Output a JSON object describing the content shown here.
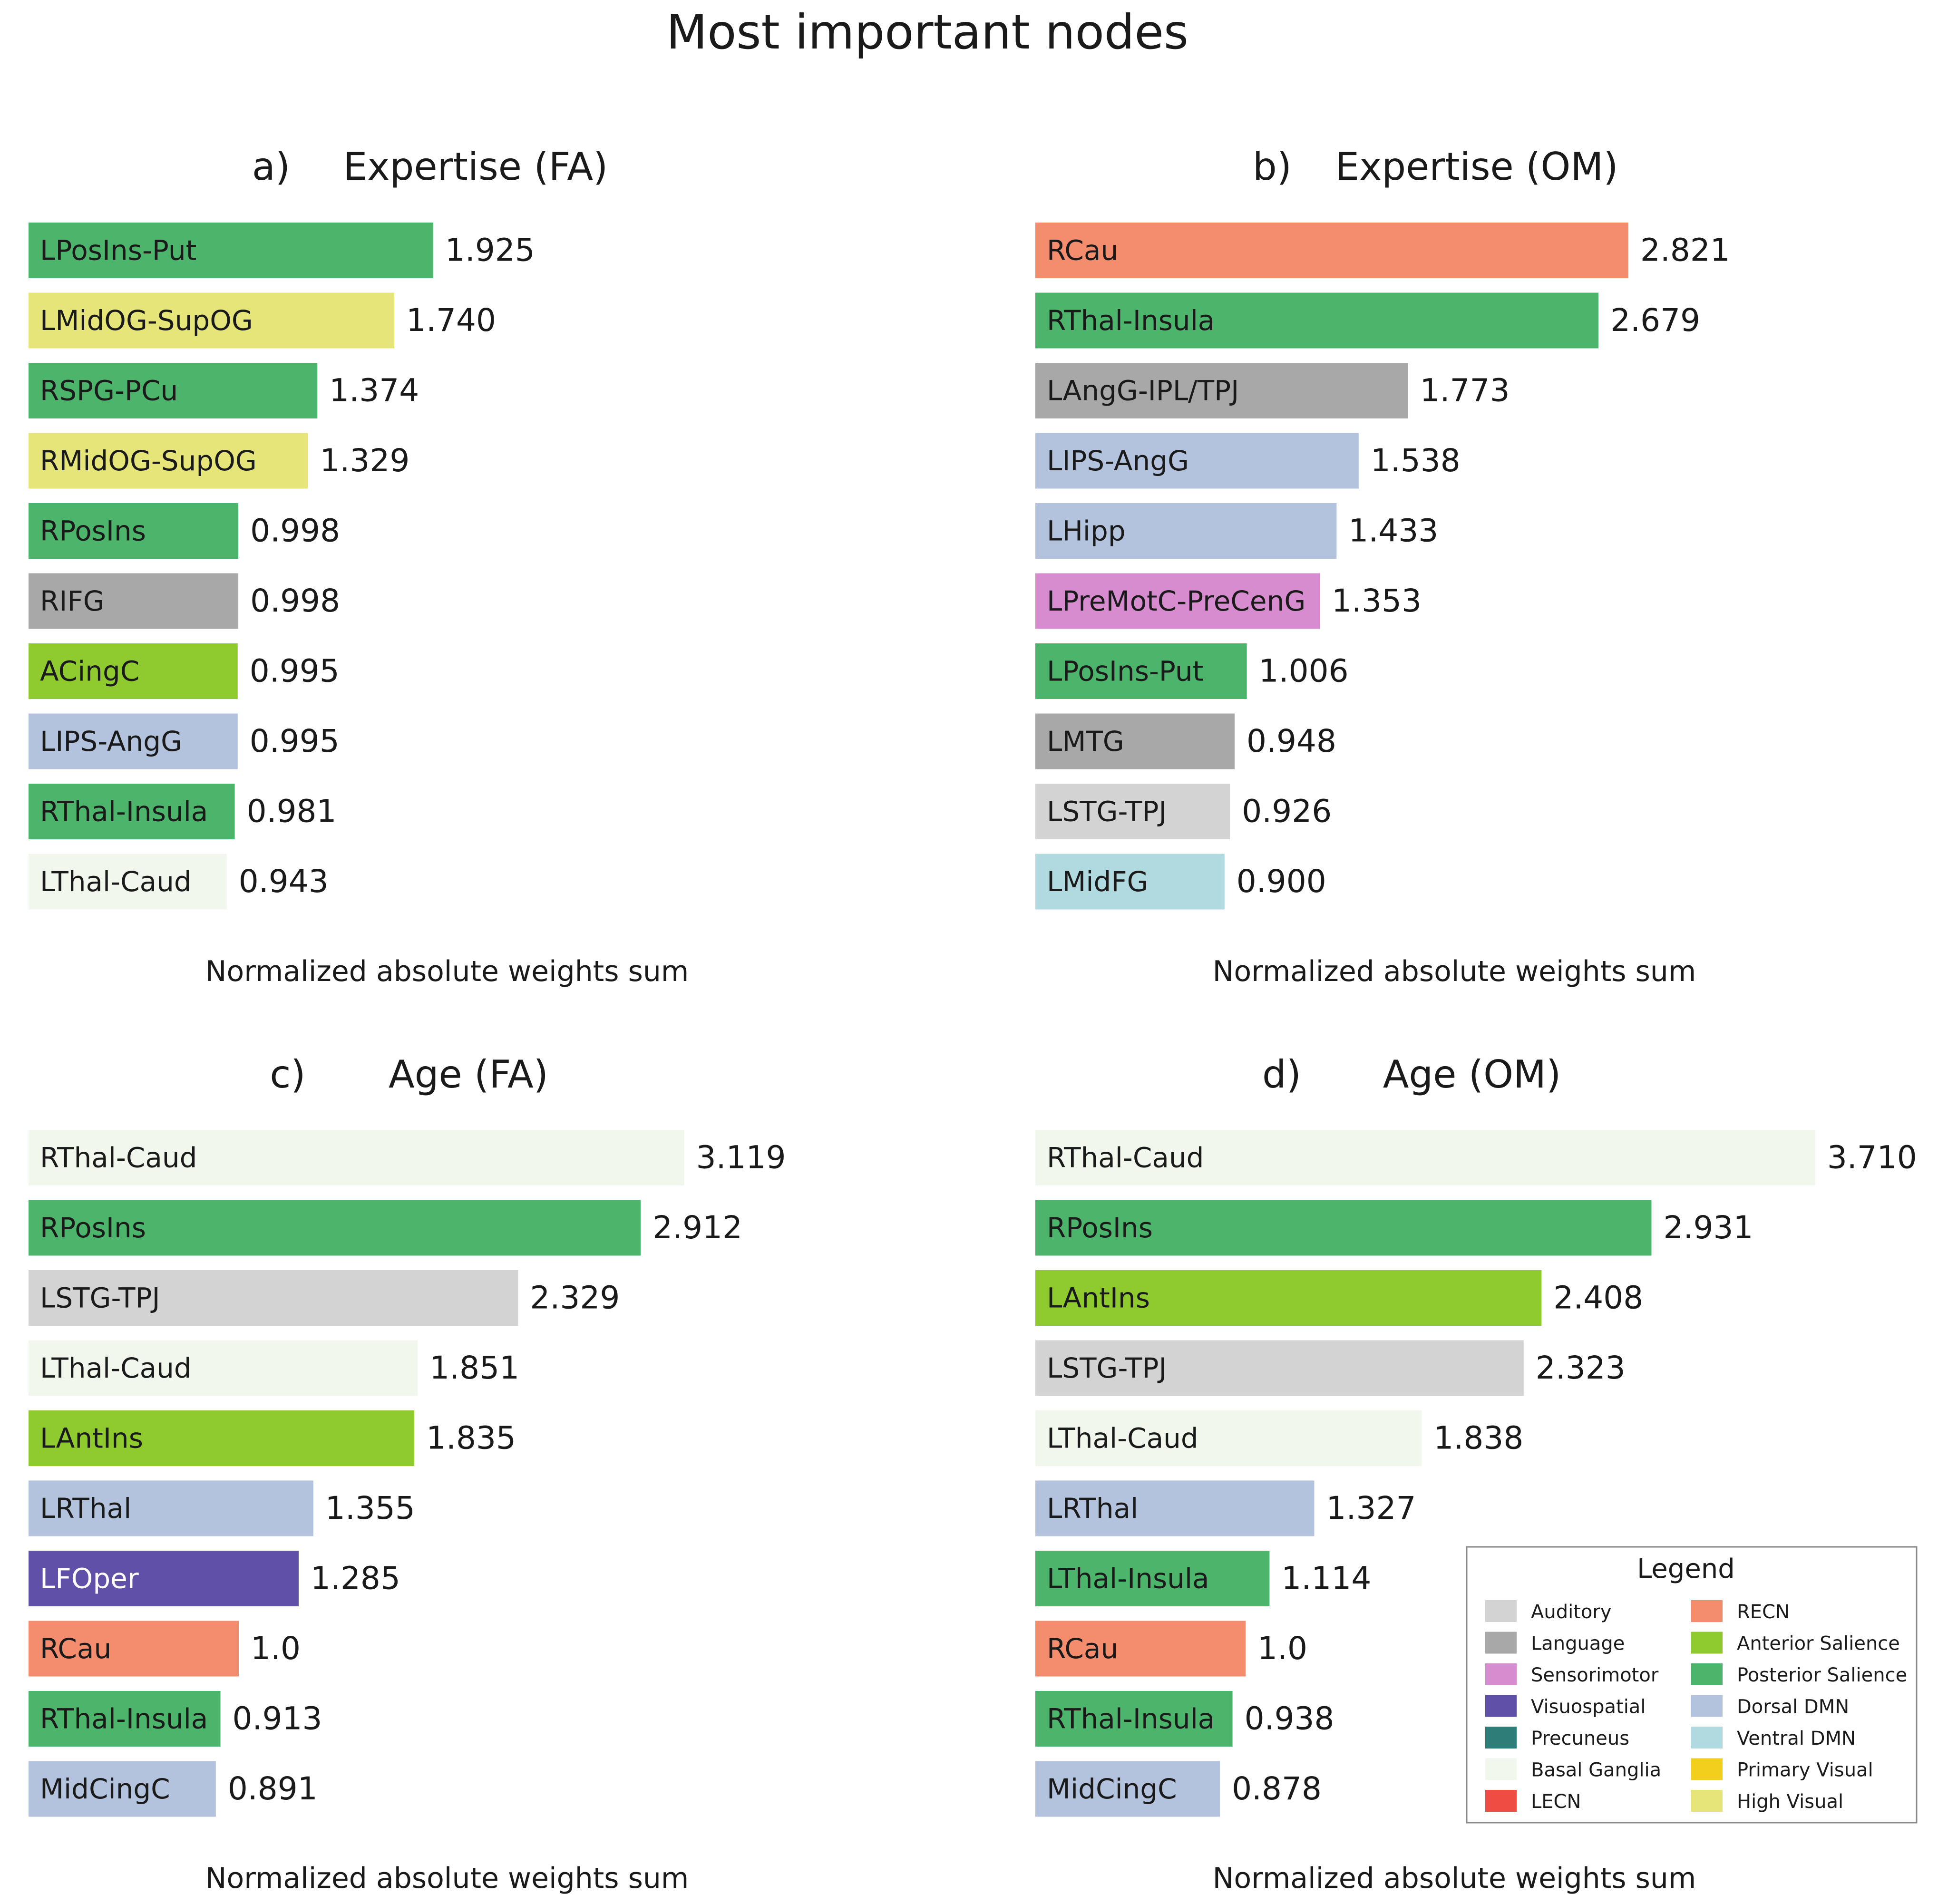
{
  "title": "Most important nodes",
  "legend": {
    "title": "Legend",
    "entries": [
      {
        "label": "Auditory",
        "color": "#d3d3d3"
      },
      {
        "label": "Language",
        "color": "#a8a8a8"
      },
      {
        "label": "Sensorimotor",
        "color": "#d68ccf"
      },
      {
        "label": "Visuospatial",
        "color": "#6150a8"
      },
      {
        "label": "Precuneus",
        "color": "#2e7d78"
      },
      {
        "label": "Basal Ganglia",
        "color": "#f1f7ed"
      },
      {
        "label": "LECN",
        "color": "#ef4c44"
      },
      {
        "label": "RECN",
        "color": "#f48d6e"
      },
      {
        "label": "Anterior Salience",
        "color": "#8fcb2e"
      },
      {
        "label": "Posterior Salience",
        "color": "#4cb56b"
      },
      {
        "label": "Dorsal DMN",
        "color": "#b3c3de"
      },
      {
        "label": "Ventral DMN",
        "color": "#b1dae0"
      },
      {
        "label": "Primary Visual",
        "color": "#f2cf1c"
      },
      {
        "label": "High Visual",
        "color": "#e6e57a"
      }
    ]
  },
  "chart_data": [
    {
      "type": "bar",
      "orientation": "horizontal",
      "panel": "a)",
      "title": "Expertise (FA)",
      "xlabel": "Normalized absolute weights sum",
      "xlim": [
        0,
        4.27
      ],
      "categories": [
        "LPosIns-Put",
        "LMidOG-SupOG",
        "RSPG-PCu",
        "RMidOG-SupOG",
        "RPosIns",
        "RIFG",
        "ACingC",
        "LIPS-AngG",
        "RThal-Insula",
        "LThal-Caud"
      ],
      "values": [
        1.925,
        1.74,
        1.374,
        1.329,
        0.998,
        0.998,
        0.995,
        0.995,
        0.981,
        0.943
      ],
      "labels": [
        "1.925",
        "1.740",
        "1.374",
        "1.329",
        "0.998",
        "0.998",
        "0.995",
        "0.995",
        "0.981",
        "0.943"
      ],
      "colors": [
        "#4cb56b",
        "#e6e57a",
        "#4cb56b",
        "#e6e57a",
        "#4cb56b",
        "#a8a8a8",
        "#8fcb2e",
        "#b3c3de",
        "#4cb56b",
        "#f1f7ed"
      ]
    },
    {
      "type": "bar",
      "orientation": "horizontal",
      "panel": "b)",
      "title": "Expertise (OM)",
      "xlabel": "Normalized absolute weights sum",
      "xlim": [
        0,
        4.27
      ],
      "categories": [
        "RCau",
        "RThal-Insula",
        "LAngG-IPL/TPJ",
        "LIPS-AngG",
        "LHipp",
        "LPreMotC-PreCenG",
        "LPosIns-Put",
        "LMTG",
        "LSTG-TPJ",
        "LMidFG"
      ],
      "values": [
        2.821,
        2.679,
        1.773,
        1.538,
        1.433,
        1.353,
        1.006,
        0.948,
        0.926,
        0.9
      ],
      "labels": [
        "2.821",
        "2.679",
        "1.773",
        "1.538",
        "1.433",
        "1.353",
        "1.006",
        "0.948",
        "0.926",
        "0.900"
      ],
      "colors": [
        "#f48d6e",
        "#4cb56b",
        "#a8a8a8",
        "#b3c3de",
        "#b3c3de",
        "#d68ccf",
        "#4cb56b",
        "#a8a8a8",
        "#d3d3d3",
        "#b1dae0"
      ]
    },
    {
      "type": "bar",
      "orientation": "horizontal",
      "panel": "c)",
      "title": "Age (FA)",
      "xlabel": "Normalized absolute weights sum",
      "xlim": [
        0,
        4.27
      ],
      "categories": [
        "RThal-Caud",
        "RPosIns",
        "LSTG-TPJ",
        "LThal-Caud",
        "LAntIns",
        "LRThal",
        "LFOper",
        "RCau",
        "RThal-Insula",
        "MidCingC"
      ],
      "values": [
        3.119,
        2.912,
        2.329,
        1.851,
        1.835,
        1.355,
        1.285,
        1.0,
        0.913,
        0.891
      ],
      "labels": [
        "3.119",
        "2.912",
        "2.329",
        "1.851",
        "1.835",
        "1.355",
        "1.285",
        "1.0",
        "0.913",
        "0.891"
      ],
      "colors": [
        "#f1f7ed",
        "#4cb56b",
        "#d3d3d3",
        "#f1f7ed",
        "#8fcb2e",
        "#b3c3de",
        "#6150a8",
        "#f48d6e",
        "#4cb56b",
        "#b3c3de"
      ]
    },
    {
      "type": "bar",
      "orientation": "horizontal",
      "panel": "d)",
      "title": "Age (OM)",
      "xlabel": "Normalized absolute weights sum",
      "xlim": [
        0,
        4.27
      ],
      "categories": [
        "RThal-Caud",
        "RPosIns",
        "LAntIns",
        "LSTG-TPJ",
        "LThal-Caud",
        "LRThal",
        "LThal-Insula",
        "RCau",
        "RThal-Insula",
        "MidCingC"
      ],
      "values": [
        3.71,
        2.931,
        2.408,
        2.323,
        1.838,
        1.327,
        1.114,
        1.0,
        0.938,
        0.878
      ],
      "labels": [
        "3.710",
        "2.931",
        "2.408",
        "2.323",
        "1.838",
        "1.327",
        "1.114",
        "1.0",
        "0.938",
        "0.878"
      ],
      "colors": [
        "#f1f7ed",
        "#4cb56b",
        "#8fcb2e",
        "#d3d3d3",
        "#f1f7ed",
        "#b3c3de",
        "#4cb56b",
        "#f48d6e",
        "#4cb56b",
        "#b3c3de"
      ]
    }
  ]
}
